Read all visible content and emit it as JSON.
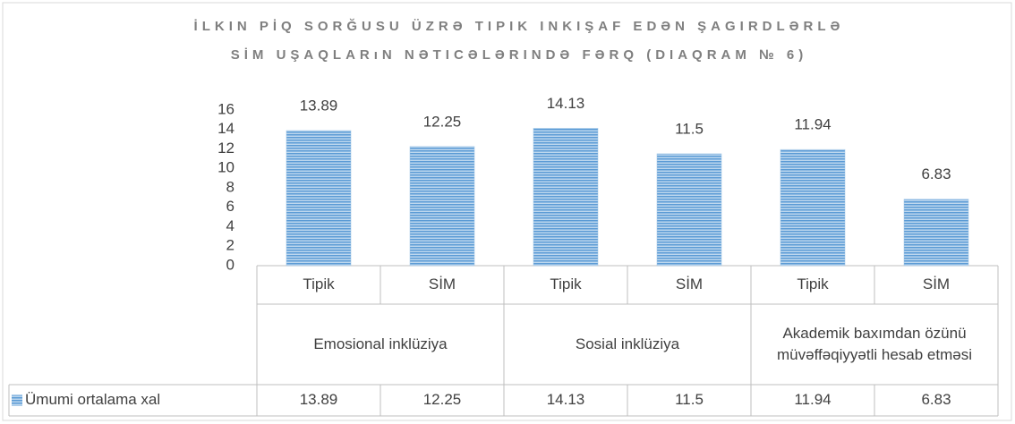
{
  "chart_data": {
    "type": "bar",
    "title": "İLKIN PİQ SORĞUSU ÜZRƏ TIPIK INKIŞAF EDƏN ŞAGIRDLƏRLƏ SİM UŞAQLARıN NƏTICƏLƏRINDƏ FƏRQ (DIAQRAM № 6)",
    "categories": [
      "Tipik",
      "SİM",
      "Tipik",
      "SİM",
      "Tipik",
      "SİM"
    ],
    "groups": [
      "Emosional inklüziya",
      "Sosial inklüziya",
      "Akademik baxımdan özünü müvəffəqiyyətli hesab etməsi"
    ],
    "series": [
      {
        "name": "Ümumi ortalama xal",
        "color": "#5b9bd5",
        "values": [
          13.89,
          12.25,
          14.13,
          11.5,
          11.94,
          6.83
        ]
      }
    ],
    "ylim": [
      0,
      16
    ],
    "yticks": [
      0,
      2,
      4,
      6,
      8,
      10,
      12,
      14,
      16
    ],
    "grid": false
  }
}
